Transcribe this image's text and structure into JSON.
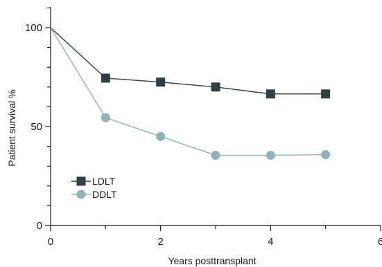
{
  "chart_data": {
    "type": "line",
    "xlabel": "Years posttransplant",
    "ylabel": "Patient survival %",
    "xlim": [
      0,
      6
    ],
    "ylim": [
      0,
      100
    ],
    "xticks": [
      0,
      2,
      4,
      6
    ],
    "yticks": [
      0,
      50,
      100
    ],
    "grid": false,
    "legend_position": "bottom-left",
    "series": [
      {
        "name": "LDLT",
        "marker": "square",
        "color": "#2e3f46",
        "x": [
          0,
          1,
          2,
          3,
          4,
          5
        ],
        "y": [
          100,
          74.5,
          72.5,
          70.0,
          66.5,
          66.5
        ]
      },
      {
        "name": "DDLT",
        "marker": "circle",
        "color": "#8fb3b8",
        "x": [
          0,
          1,
          2,
          3,
          4,
          5
        ],
        "y": [
          100,
          54.5,
          45.0,
          35.5,
          35.5,
          35.8
        ]
      }
    ]
  }
}
